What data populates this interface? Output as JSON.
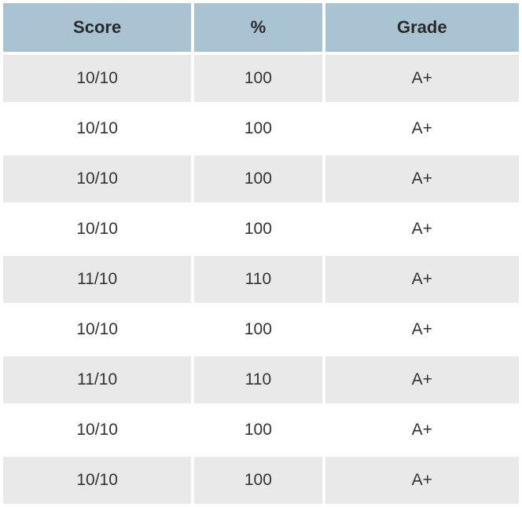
{
  "table": {
    "columns": [
      "Score",
      "%",
      "Grade"
    ],
    "header_bg_color": "#a9c3d3",
    "header_text_color": "#2a2a2a",
    "header_fontsize": 22,
    "cell_fontsize": 21,
    "cell_text_color": "#333333",
    "row_color_odd": "#e9e9e9",
    "row_color_even": "#ffffff",
    "border_spacing": 4,
    "rows": [
      [
        "10/10",
        "100",
        "A+"
      ],
      [
        "10/10",
        "100",
        "A+"
      ],
      [
        "10/10",
        "100",
        "A+"
      ],
      [
        "10/10",
        "100",
        "A+"
      ],
      [
        "11/10",
        "110",
        "A+"
      ],
      [
        "10/10",
        "100",
        "A+"
      ],
      [
        "11/10",
        "110",
        "A+"
      ],
      [
        "10/10",
        "100",
        "A+"
      ],
      [
        "10/10",
        "100",
        "A+"
      ]
    ]
  }
}
